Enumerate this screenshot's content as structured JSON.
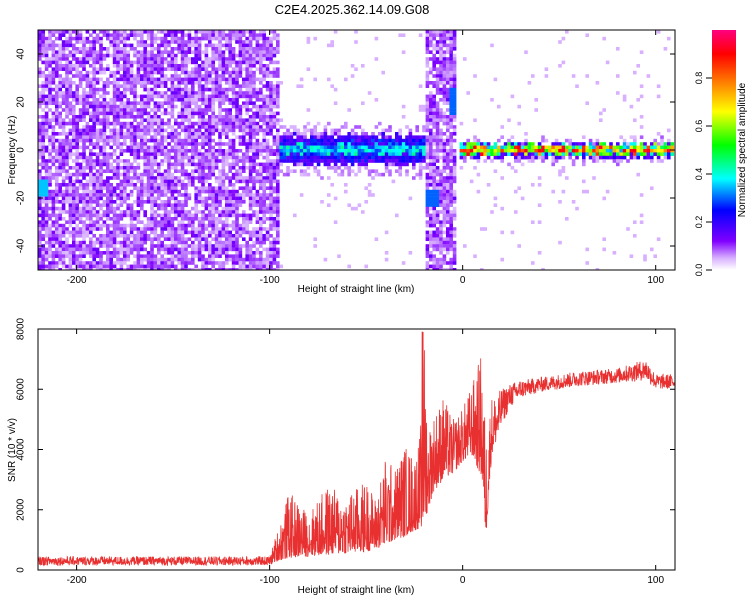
{
  "title": "C2E4.2025.362.14.09.G08",
  "chart_data": [
    {
      "type": "heatmap",
      "name": "spectrogram",
      "xlabel": "Height of straight line (km)",
      "ylabel": "Frequency (Hz)",
      "xlim": [
        -220,
        110
      ],
      "ylim": [
        -50,
        50
      ],
      "xticks": [
        -200,
        -100,
        0,
        100
      ],
      "yticks": [
        -40,
        -20,
        0,
        20,
        40
      ],
      "colorbar": {
        "label": "Normalized spectral amplitude",
        "range": [
          0,
          1
        ],
        "ticks": [
          "0.0",
          "0.2",
          "0.4",
          "0.6",
          "0.8"
        ],
        "colors": [
          "#ffffff",
          "#8000ff",
          "#0000ff",
          "#00ffff",
          "#00ff00",
          "#ffff00",
          "#ff8000",
          "#ff0000",
          "#ff0080"
        ]
      },
      "regions": [
        {
          "x": [
            -220,
            -92
          ],
          "description_level": 0.15,
          "freq_spread": [
            -50,
            50
          ]
        },
        {
          "x": [
            -95,
            -20
          ],
          "center_freq": 0,
          "band_halfwidth": 6,
          "peak_level": 0.45
        },
        {
          "x": [
            -20,
            -3
          ],
          "description_level": 0.2,
          "freq_spread": [
            -50,
            50
          ]
        },
        {
          "x": [
            -1,
            110
          ],
          "center_freq": 0,
          "band_halfwidth": 3,
          "peak_level": 0.95
        }
      ]
    },
    {
      "type": "line",
      "name": "snr",
      "xlabel": "Height of straight line (km)",
      "ylabel": "SNR (10 * v/v)",
      "xlim": [
        -220,
        110
      ],
      "ylim": [
        0,
        8000
      ],
      "xticks": [
        -200,
        -100,
        0,
        100
      ],
      "yticks": [
        0,
        2000,
        4000,
        6000,
        8000
      ],
      "color": "#e83030",
      "envelope": {
        "x": [
          -220,
          -100,
          -98,
          -90,
          -80,
          -70,
          -60,
          -50,
          -45,
          -40,
          -35,
          -30,
          -25,
          -22,
          -20,
          -18,
          -15,
          -10,
          -5,
          0,
          5,
          10,
          12,
          15,
          20,
          25,
          30,
          40,
          60,
          80,
          95,
          100,
          110
        ],
        "low": [
          150,
          150,
          250,
          400,
          450,
          500,
          550,
          600,
          700,
          800,
          1000,
          1100,
          1300,
          1400,
          1500,
          2000,
          2600,
          3000,
          3200,
          3600,
          3800,
          3000,
          1000,
          3800,
          4800,
          5400,
          5700,
          5900,
          6100,
          6200,
          6300,
          6000,
          6000
        ],
        "high": [
          450,
          450,
          900,
          2600,
          1900,
          2800,
          2500,
          3000,
          2400,
          3800,
          3400,
          4200,
          3800,
          4600,
          8000,
          4800,
          5200,
          5800,
          5000,
          5400,
          6200,
          7300,
          4500,
          5800,
          6000,
          6200,
          6300,
          6400,
          6600,
          6700,
          7000,
          6500,
          6500
        ]
      }
    }
  ]
}
